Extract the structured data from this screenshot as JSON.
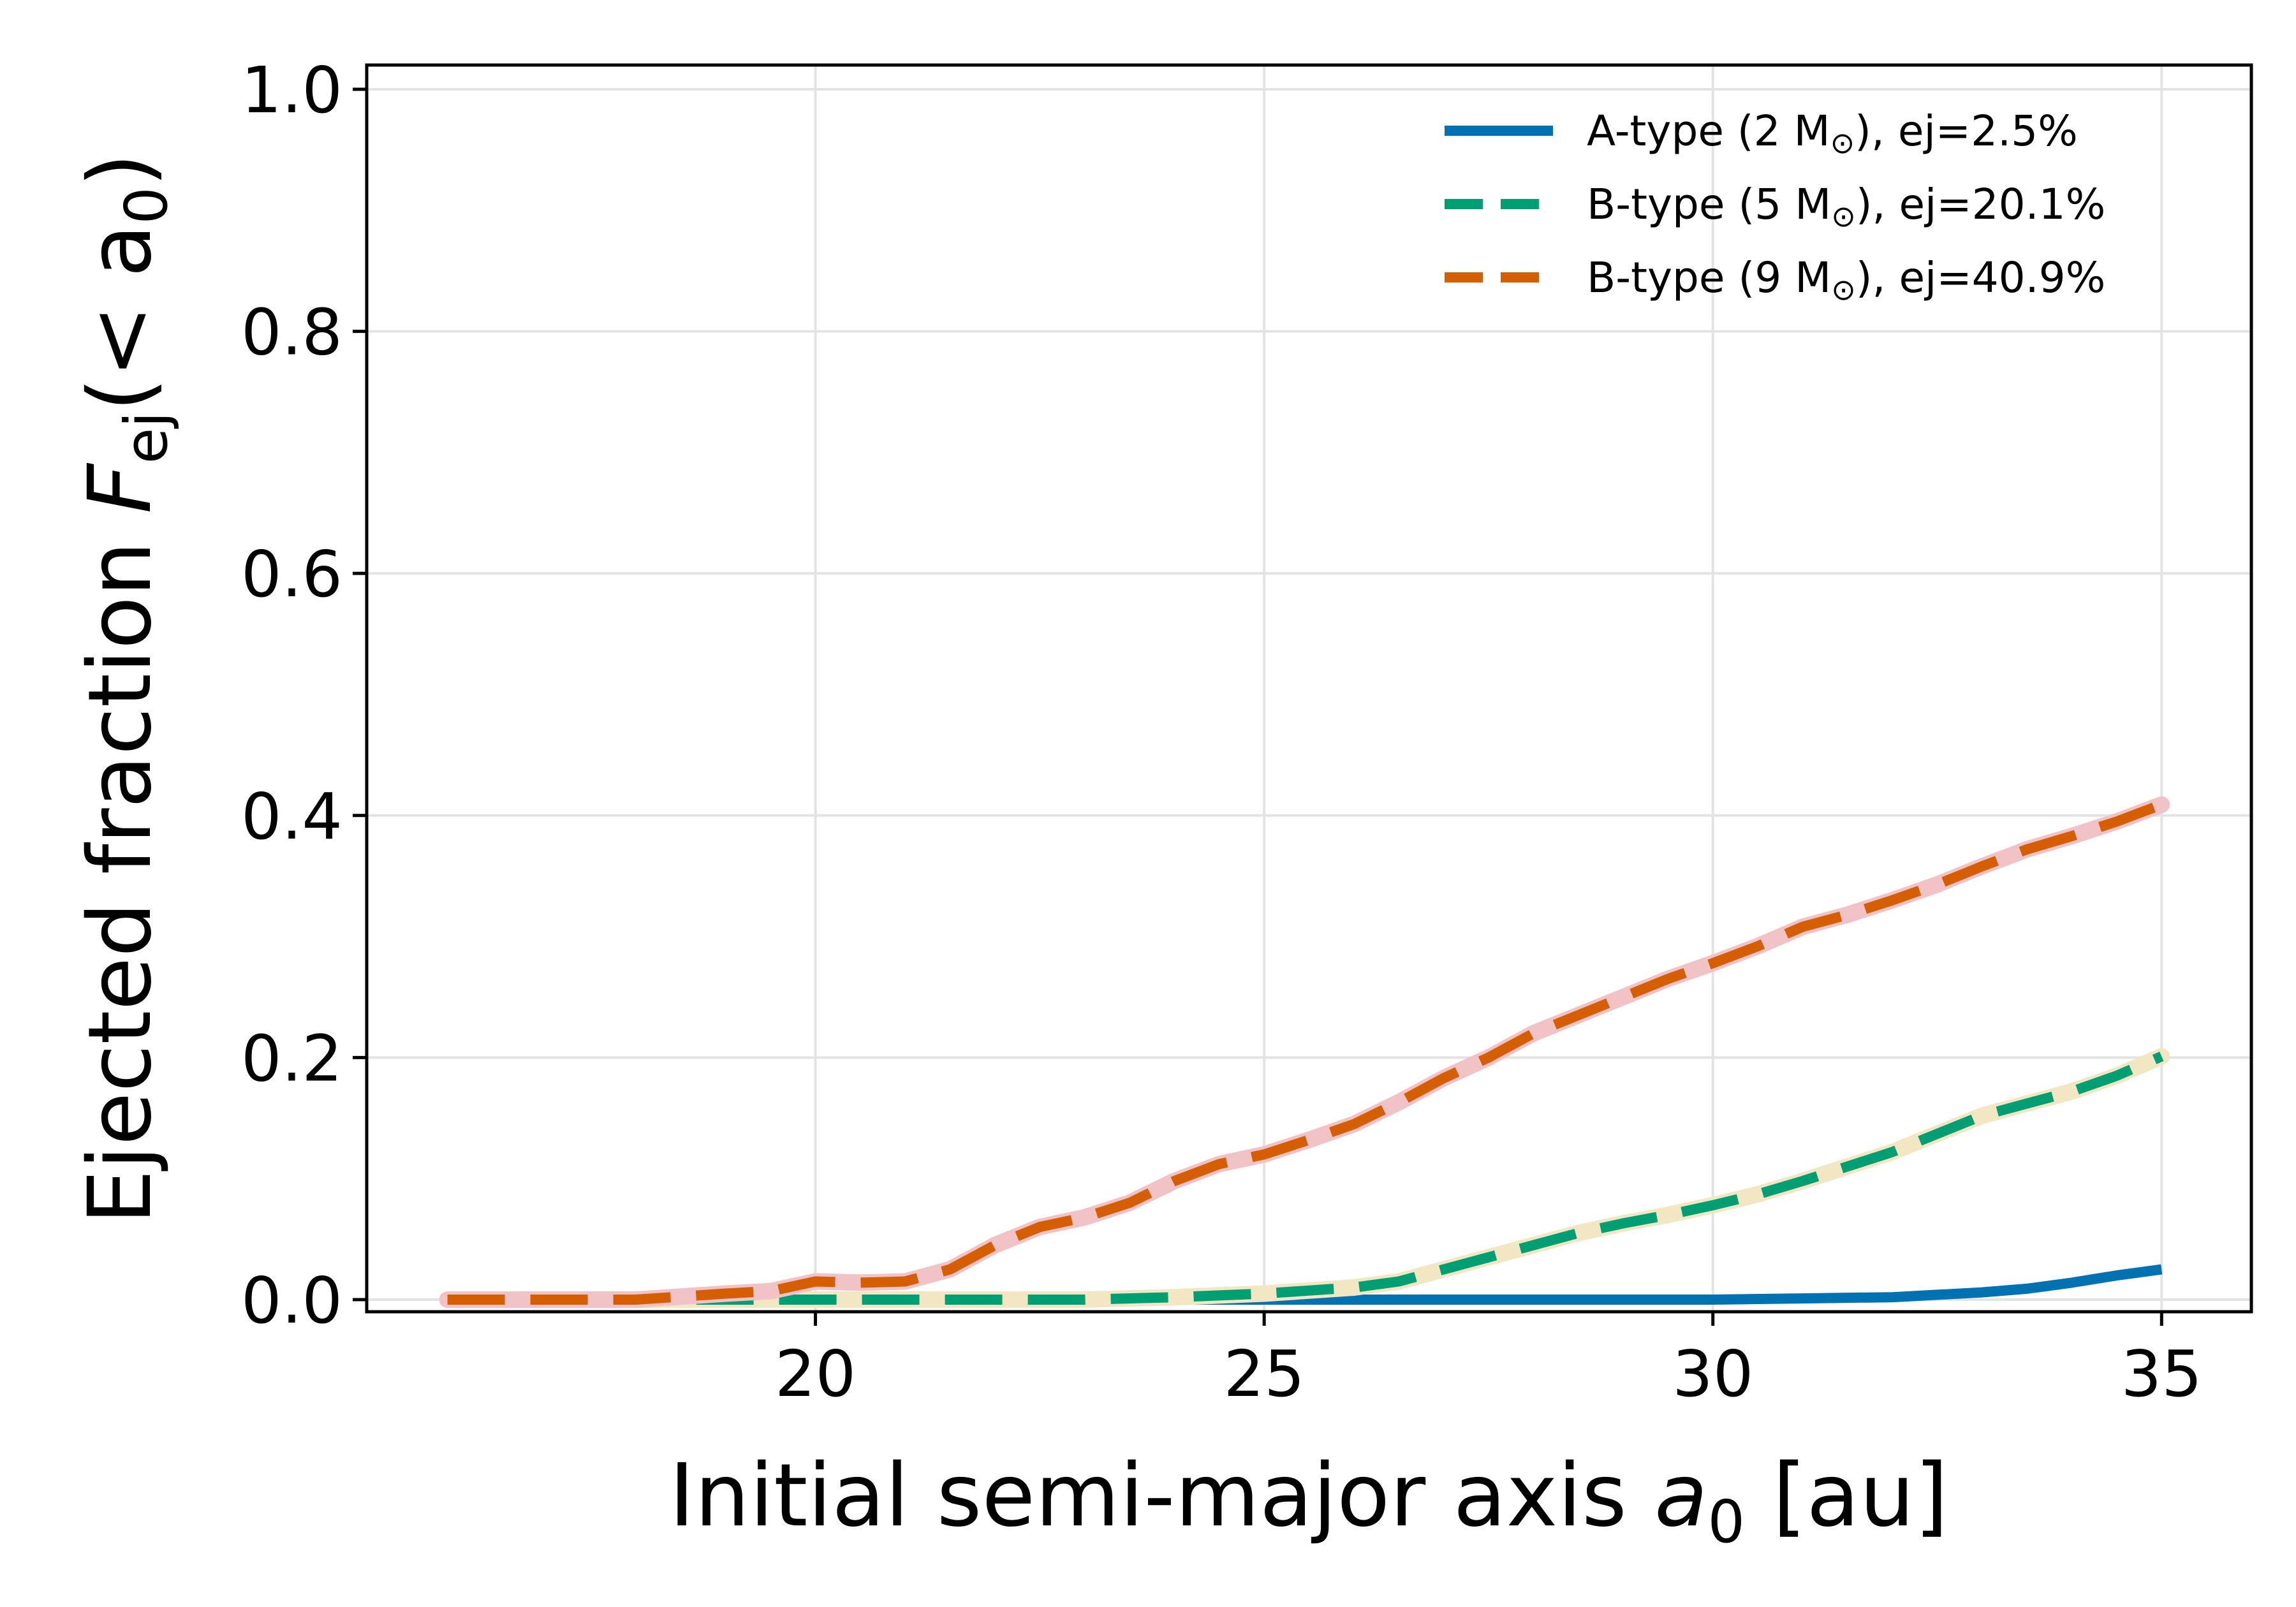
{
  "chart_data": {
    "type": "line",
    "xlabel": "Initial semi-major axis",
    "xlabel_symbol": "a",
    "xlabel_subscript": "0",
    "xlabel_unit": "[au]",
    "ylabel": "Ejected fraction",
    "ylabel_symbol": "F",
    "ylabel_subscript": "ej",
    "ylabel_suffix": "(< a",
    "ylabel_suffix_subscript": "0",
    "ylabel_close": ")",
    "xlim": [
      15.0,
      36.0
    ],
    "ylim": [
      -0.01,
      1.02
    ],
    "xticks": [
      20,
      25,
      30,
      35
    ],
    "xtick_labels": [
      "20",
      "25",
      "30",
      "35"
    ],
    "yticks": [
      0.0,
      0.2,
      0.4,
      0.6,
      0.8,
      1.0
    ],
    "ytick_labels": [
      "0.0",
      "0.2",
      "0.4",
      "0.6",
      "0.8",
      "1.0"
    ],
    "grid": true,
    "legend_placement": "top-right",
    "series": [
      {
        "name": "A-type (2 M",
        "name_symbol": "⊙",
        "name_suffix": "),  ej=2.5%",
        "color": "#0072b2",
        "style": "solid",
        "x": [
          15.9,
          20,
          25,
          28,
          30,
          31,
          32,
          32.5,
          33,
          33.5,
          34,
          34.5,
          35
        ],
        "y": [
          0.0,
          0.0,
          0.0,
          0.0,
          0.0,
          0.001,
          0.002,
          0.004,
          0.006,
          0.009,
          0.014,
          0.02,
          0.025
        ]
      },
      {
        "name": "B-type (5 M",
        "name_symbol": "⊙",
        "name_suffix": "),  ej=20.1%",
        "color": "#009e73",
        "highlight": "#f3e6c3",
        "style": "dashed",
        "x": [
          15.9,
          20,
          23,
          24,
          25,
          26,
          26.5,
          27,
          27.5,
          28,
          28.5,
          29,
          29.5,
          30,
          30.5,
          31,
          31.5,
          32,
          32.5,
          33,
          33.5,
          34,
          34.5,
          35
        ],
        "y": [
          0.0,
          0.0,
          0.0,
          0.002,
          0.005,
          0.01,
          0.015,
          0.025,
          0.035,
          0.045,
          0.055,
          0.063,
          0.07,
          0.078,
          0.087,
          0.098,
          0.11,
          0.122,
          0.137,
          0.152,
          0.162,
          0.172,
          0.185,
          0.201
        ]
      },
      {
        "name": "B-type (9 M",
        "name_symbol": "⊙",
        "name_suffix": "),  ej=40.9%",
        "color": "#d55e00",
        "highlight": "#f1c3c7",
        "style": "dashed",
        "x": [
          15.9,
          18,
          19,
          19.5,
          20,
          20.5,
          21,
          21.5,
          22,
          22.5,
          23,
          23.5,
          24,
          24.5,
          25,
          25.5,
          26,
          26.5,
          27,
          27.5,
          28,
          28.5,
          29,
          29.5,
          30,
          30.5,
          31,
          31.5,
          32,
          32.5,
          33,
          33.5,
          34,
          34.5,
          35
        ],
        "y": [
          0.0,
          0.0,
          0.005,
          0.007,
          0.015,
          0.014,
          0.015,
          0.025,
          0.045,
          0.06,
          0.068,
          0.08,
          0.098,
          0.112,
          0.12,
          0.132,
          0.145,
          0.163,
          0.183,
          0.2,
          0.22,
          0.235,
          0.25,
          0.265,
          0.278,
          0.292,
          0.308,
          0.318,
          0.33,
          0.343,
          0.358,
          0.372,
          0.383,
          0.395,
          0.409
        ]
      }
    ]
  }
}
